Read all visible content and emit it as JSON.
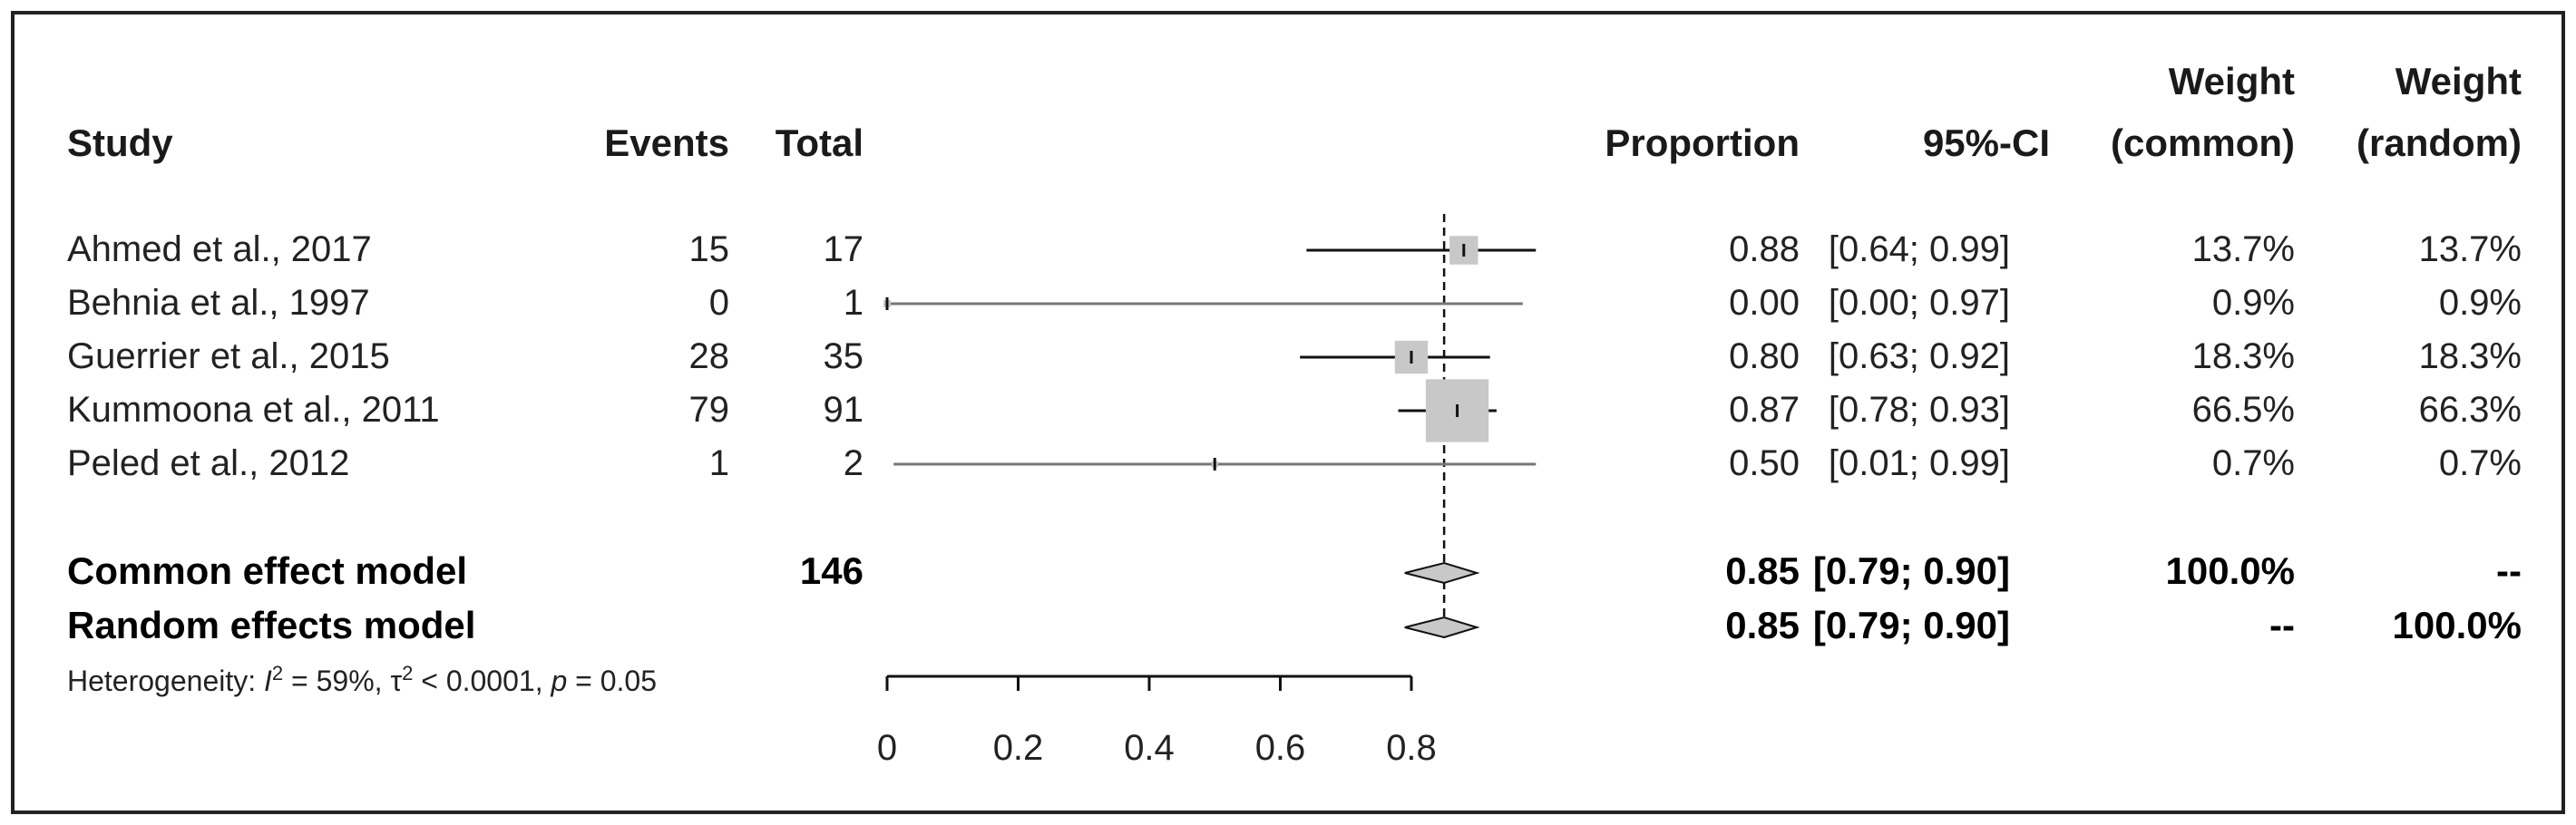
{
  "headers": {
    "study": "Study",
    "events": "Events",
    "total": "Total",
    "proportion": "Proportion",
    "ci": "95%-CI",
    "weight_common_1": "Weight",
    "weight_common_2": "(common)",
    "weight_random_1": "Weight",
    "weight_random_2": "(random)"
  },
  "studies": [
    {
      "study": "Ahmed et al., 2017",
      "events": "15",
      "total": "17",
      "proportion": "0.88",
      "ci": "[0.64; 0.99]",
      "w_common": "13.7%",
      "w_random": "13.7%"
    },
    {
      "study": "Behnia et al., 1997",
      "events": "0",
      "total": "1",
      "proportion": "0.00",
      "ci": "[0.00; 0.97]",
      "w_common": "0.9%",
      "w_random": "0.9%"
    },
    {
      "study": "Guerrier et al., 2015",
      "events": "28",
      "total": "35",
      "proportion": "0.80",
      "ci": "[0.63; 0.92]",
      "w_common": "18.3%",
      "w_random": "18.3%"
    },
    {
      "study": "Kummoona et al., 2011",
      "events": "79",
      "total": "91",
      "proportion": "0.87",
      "ci": "[0.78; 0.93]",
      "w_common": "66.5%",
      "w_random": "66.3%"
    },
    {
      "study": "Peled et al., 2012",
      "events": "1",
      "total": "2",
      "proportion": "0.50",
      "ci": "[0.01; 0.99]",
      "w_common": "0.7%",
      "w_random": "0.7%"
    }
  ],
  "summaries": [
    {
      "label": "Common effect model",
      "total": "146",
      "proportion": "0.85",
      "ci": "[0.79; 0.90]",
      "w_common": "100.0%",
      "w_random": "--"
    },
    {
      "label": "Random effects model",
      "total": "",
      "proportion": "0.85",
      "ci": "[0.79; 0.90]",
      "w_common": "--",
      "w_random": "100.0%"
    }
  ],
  "heterogeneity": {
    "prefix": "Heterogeneity: ",
    "i2_symbol": "I",
    "i2_value": " = 59%, ",
    "tau_symbol": "τ",
    "tau_value": " < 0.0001, ",
    "p_symbol": "p",
    "p_value": " = 0.05"
  },
  "chart_data": {
    "type": "forest",
    "x_ticks": [
      "0",
      "0.2",
      "0.4",
      "0.6",
      "0.8"
    ],
    "xlim": [
      0,
      0.8
    ],
    "reference_line": 0.85,
    "studies": [
      {
        "label": "Ahmed et al., 2017",
        "estimate": 0.88,
        "lower": 0.64,
        "upper": 0.99,
        "weight": 13.7
      },
      {
        "label": "Behnia et al., 1997",
        "estimate": 0.0,
        "lower": 0.0,
        "upper": 0.97,
        "weight": 0.9
      },
      {
        "label": "Guerrier et al., 2015",
        "estimate": 0.8,
        "lower": 0.63,
        "upper": 0.92,
        "weight": 18.3
      },
      {
        "label": "Kummoona et al., 2011",
        "estimate": 0.87,
        "lower": 0.78,
        "upper": 0.93,
        "weight": 66.5
      },
      {
        "label": "Peled et al., 2012",
        "estimate": 0.5,
        "lower": 0.01,
        "upper": 0.99,
        "weight": 0.7
      }
    ],
    "summaries": [
      {
        "label": "Common effect model",
        "estimate": 0.85,
        "lower": 0.79,
        "upper": 0.9
      },
      {
        "label": "Random effects model",
        "estimate": 0.85,
        "lower": 0.79,
        "upper": 0.9
      }
    ],
    "colors": {
      "square": "#c8c8c8",
      "diamond": "#c8c8c8",
      "line": "#111111"
    }
  }
}
